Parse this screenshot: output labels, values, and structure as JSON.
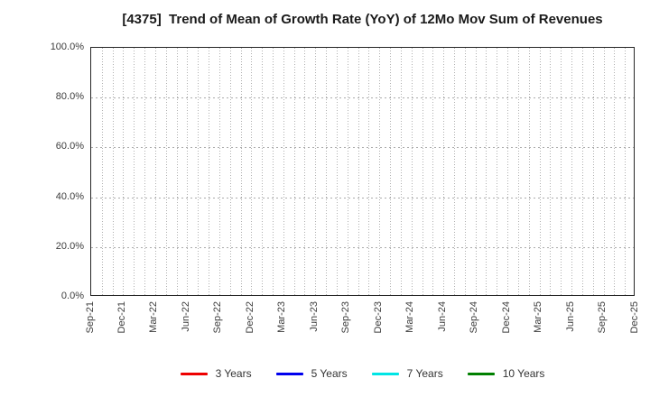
{
  "chart_data": {
    "type": "line",
    "title": "[4375]  Trend of Mean of Growth Rate (YoY) of 12Mo Mov Sum of Revenues",
    "xlabel": "",
    "ylabel": "",
    "ylim": [
      0,
      100
    ],
    "y_tick_labels": [
      "0.0%",
      "20.0%",
      "40.0%",
      "60.0%",
      "80.0%",
      "100.0%"
    ],
    "y_tick_values": [
      0,
      20,
      40,
      60,
      80,
      100
    ],
    "y_gridline_values": [
      20,
      40,
      60,
      80
    ],
    "x_tick_labels": [
      "Sep-21",
      "Dec-21",
      "Mar-22",
      "Jun-22",
      "Sep-22",
      "Dec-22",
      "Mar-23",
      "Jun-23",
      "Sep-23",
      "Dec-23",
      "Mar-24",
      "Jun-24",
      "Sep-24",
      "Dec-24",
      "Mar-25",
      "Jun-25",
      "Sep-25",
      "Dec-25"
    ],
    "x_months_per_label": 3,
    "x_total_month_intervals": 51,
    "grid": "dotted, vertical gridline every month, horizontal every 20%",
    "legend_position": "bottom-center",
    "series": [
      {
        "name": "3 Years",
        "color": "#ee0000",
        "values": []
      },
      {
        "name": "5 Years",
        "color": "#0000ee",
        "values": []
      },
      {
        "name": "7 Years",
        "color": "#00e5e5",
        "values": []
      },
      {
        "name": "10 Years",
        "color": "#008000",
        "values": []
      }
    ]
  },
  "colors": {
    "background": "#ffffff",
    "axis_frame": "#262626",
    "gridline": "#b0b0b0",
    "title_text": "#1a1a1a",
    "tick_text": "#3c3c3c",
    "legend_text": "#333333"
  }
}
